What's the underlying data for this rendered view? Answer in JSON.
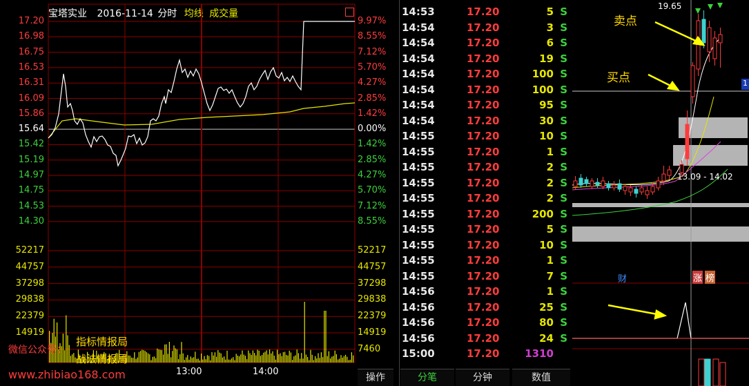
{
  "header": {
    "stock_name": "宝塔实业",
    "date": "2016-11-14",
    "view": "分时",
    "avg_label": "均线",
    "vol_label": "成交量"
  },
  "price_axis_left": [
    "17.20",
    "16.98",
    "16.75",
    "16.53",
    "16.31",
    "16.09",
    "15.86",
    "15.64",
    "15.42",
    "15.19",
    "14.97",
    "14.75",
    "14.53",
    "14.30"
  ],
  "pct_axis_right": [
    "9.97%",
    "8.55%",
    "7.12%",
    "5.70%",
    "4.27%",
    "2.85%",
    "1.42%",
    "0.00%",
    "1.42%",
    "2.85%",
    "4.27%",
    "5.70%",
    "7.12%",
    "8.55%"
  ],
  "vol_axis_left": [
    "52217",
    "44757",
    "37298",
    "29838",
    "22379",
    "14919"
  ],
  "vol_axis_right": [
    "52217",
    "44757",
    "37298",
    "29838",
    "22379",
    "14919",
    "7460"
  ],
  "time_axis": [
    "13:00",
    "14:00"
  ],
  "watermark": {
    "wechat": "微信公众号：",
    "name1": "指标情报局",
    "name2": "战法情报局",
    "url": "www.zhibiao168.com"
  },
  "ticks": [
    {
      "time": "14:53",
      "price": "17.20",
      "vol": "5",
      "side": "S"
    },
    {
      "time": "14:54",
      "price": "17.20",
      "vol": "3",
      "side": "S"
    },
    {
      "time": "14:54",
      "price": "17.20",
      "vol": "6",
      "side": "S"
    },
    {
      "time": "14:54",
      "price": "17.20",
      "vol": "19",
      "side": "S"
    },
    {
      "time": "14:54",
      "price": "17.20",
      "vol": "100",
      "side": "S"
    },
    {
      "time": "14:54",
      "price": "17.20",
      "vol": "100",
      "side": "S"
    },
    {
      "time": "14:54",
      "price": "17.20",
      "vol": "95",
      "side": "S"
    },
    {
      "time": "14:54",
      "price": "17.20",
      "vol": "30",
      "side": "S"
    },
    {
      "time": "14:55",
      "price": "17.20",
      "vol": "10",
      "side": "S"
    },
    {
      "time": "14:55",
      "price": "17.20",
      "vol": "1",
      "side": "S"
    },
    {
      "time": "14:55",
      "price": "17.20",
      "vol": "2",
      "side": "S"
    },
    {
      "time": "14:55",
      "price": "17.20",
      "vol": "2",
      "side": "S"
    },
    {
      "time": "14:55",
      "price": "17.20",
      "vol": "2",
      "side": "S"
    },
    {
      "time": "14:55",
      "price": "17.20",
      "vol": "200",
      "side": "S"
    },
    {
      "time": "14:55",
      "price": "17.20",
      "vol": "5",
      "side": "S"
    },
    {
      "time": "14:55",
      "price": "17.20",
      "vol": "10",
      "side": "S"
    },
    {
      "time": "14:55",
      "price": "17.20",
      "vol": "1",
      "side": "S"
    },
    {
      "time": "14:55",
      "price": "17.20",
      "vol": "7",
      "side": "S"
    },
    {
      "time": "14:56",
      "price": "17.20",
      "vol": "1",
      "side": "S"
    },
    {
      "time": "14:56",
      "price": "17.20",
      "vol": "25",
      "side": "S"
    },
    {
      "time": "14:56",
      "price": "17.20",
      "vol": "80",
      "side": "S"
    },
    {
      "time": "14:56",
      "price": "17.20",
      "vol": "24",
      "side": "S"
    },
    {
      "time": "15:00",
      "price": "17.20",
      "vol": "1310",
      "side": ""
    }
  ],
  "bottom_tabs": [
    "操作",
    "分笔",
    "分钟",
    "数值"
  ],
  "kline": {
    "high_label": "19.65",
    "sell_label": "卖点",
    "buy_label": "买点",
    "ma_label": "13.09 - 14.02",
    "fin_label": "财",
    "zhang_label": "涨",
    "bang_label": "榜",
    "side_value": "1"
  },
  "colors": {
    "up": "#ff3c3c",
    "down": "#3cd23c",
    "price_line": "#ffffff",
    "avg_line": "#e6e600",
    "grid": "#8b0000"
  }
}
